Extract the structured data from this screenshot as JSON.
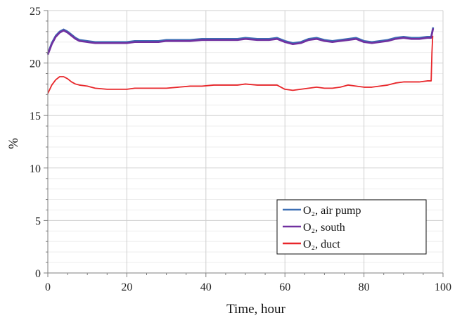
{
  "chart_data": {
    "type": "line",
    "title": "",
    "xlabel": "Time, hour",
    "ylabel": "%",
    "xlim": [
      0,
      100
    ],
    "ylim": [
      0,
      25
    ],
    "x_ticks": [
      0,
      20,
      40,
      60,
      80,
      100
    ],
    "y_ticks": [
      0,
      5,
      10,
      15,
      20,
      25
    ],
    "x_tick_labels": [
      "0",
      "20",
      "40",
      "60",
      "80",
      "100"
    ],
    "y_tick_labels": [
      "0",
      "5",
      "10",
      "15",
      "20",
      "25"
    ],
    "grid": "horizontal major and minor",
    "legend_position": "bottom-right",
    "series": [
      {
        "name": "O₂, air pump",
        "color": "#3c6fb4",
        "x": [
          0,
          1,
          2,
          3,
          4,
          5,
          6,
          7,
          8,
          10,
          12,
          15,
          18,
          20,
          22,
          25,
          28,
          30,
          33,
          36,
          39,
          42,
          45,
          48,
          50,
          53,
          56,
          58,
          60,
          62,
          64,
          66,
          68,
          70,
          72,
          74,
          76,
          78,
          80,
          82,
          84,
          86,
          88,
          90,
          92,
          94,
          96,
          97,
          97.5
        ],
        "y": [
          20.9,
          21.9,
          22.6,
          23.0,
          23.2,
          23.0,
          22.7,
          22.4,
          22.2,
          22.1,
          22.0,
          22.0,
          22.0,
          22.0,
          22.1,
          22.1,
          22.1,
          22.2,
          22.2,
          22.2,
          22.3,
          22.3,
          22.3,
          22.3,
          22.4,
          22.3,
          22.3,
          22.4,
          22.1,
          21.9,
          22.0,
          22.3,
          22.4,
          22.2,
          22.1,
          22.2,
          22.3,
          22.4,
          22.1,
          22.0,
          22.1,
          22.2,
          22.4,
          22.5,
          22.4,
          22.4,
          22.5,
          22.5,
          23.4
        ]
      },
      {
        "name": "O₂, south",
        "color": "#7030a0",
        "x": [
          0,
          1,
          2,
          3,
          4,
          5,
          6,
          7,
          8,
          10,
          12,
          15,
          18,
          20,
          22,
          25,
          28,
          30,
          33,
          36,
          39,
          42,
          45,
          48,
          50,
          53,
          56,
          58,
          60,
          62,
          64,
          66,
          68,
          70,
          72,
          74,
          76,
          78,
          80,
          82,
          84,
          86,
          88,
          90,
          92,
          94,
          96,
          97,
          97.5
        ],
        "y": [
          20.8,
          21.8,
          22.5,
          22.9,
          23.1,
          22.9,
          22.6,
          22.3,
          22.1,
          22.0,
          21.9,
          21.9,
          21.9,
          21.9,
          22.0,
          22.0,
          22.0,
          22.1,
          22.1,
          22.1,
          22.2,
          22.2,
          22.2,
          22.2,
          22.3,
          22.2,
          22.2,
          22.3,
          22.0,
          21.8,
          21.9,
          22.2,
          22.3,
          22.1,
          22.0,
          22.1,
          22.2,
          22.3,
          22.0,
          21.9,
          22.0,
          22.1,
          22.3,
          22.4,
          22.3,
          22.3,
          22.4,
          22.4,
          23.3
        ]
      },
      {
        "name": "O₂, duct",
        "color": "#e8262a",
        "x": [
          0,
          1,
          2,
          3,
          4,
          5,
          6,
          7,
          8,
          10,
          12,
          15,
          18,
          20,
          22,
          25,
          28,
          30,
          33,
          36,
          39,
          42,
          45,
          48,
          50,
          53,
          56,
          58,
          60,
          62,
          64,
          66,
          68,
          70,
          72,
          74,
          76,
          78,
          80,
          82,
          84,
          86,
          88,
          90,
          92,
          94,
          96,
          97,
          97.2,
          97.4
        ],
        "y": [
          17.1,
          17.9,
          18.4,
          18.7,
          18.7,
          18.5,
          18.2,
          18.0,
          17.9,
          17.8,
          17.6,
          17.5,
          17.5,
          17.5,
          17.6,
          17.6,
          17.6,
          17.6,
          17.7,
          17.8,
          17.8,
          17.9,
          17.9,
          17.9,
          18.0,
          17.9,
          17.9,
          17.9,
          17.5,
          17.4,
          17.5,
          17.6,
          17.7,
          17.6,
          17.6,
          17.7,
          17.9,
          17.8,
          17.7,
          17.7,
          17.8,
          17.9,
          18.1,
          18.2,
          18.2,
          18.2,
          18.3,
          18.3,
          21.0,
          22.6
        ]
      }
    ]
  }
}
